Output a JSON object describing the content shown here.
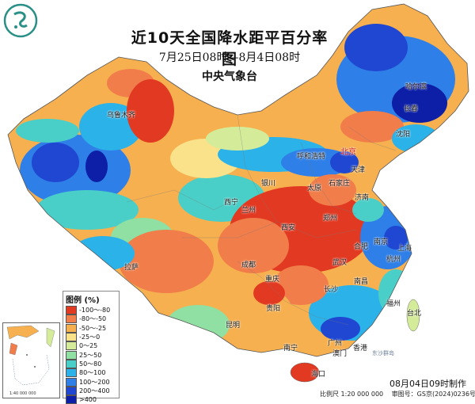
{
  "title": "近10天全国降水距平百分率图",
  "subtitle": "7月25日08时—8月4日08时",
  "agency": "中央气象台",
  "issue_time": "08月04日09时制作",
  "scale": "比例尺 1:20 000 000",
  "review_no": "审图号：GS京(2024)0236号",
  "legend": {
    "title": "图例 (%)",
    "items": [
      {
        "label": "-100～-80",
        "color": "#e23a22"
      },
      {
        "label": "-80～-50",
        "color": "#f07d4a"
      },
      {
        "label": "-50～-25",
        "color": "#f6b04f"
      },
      {
        "label": "-25～0",
        "color": "#f9e28a"
      },
      {
        "label": "0～25",
        "color": "#d4ec9a"
      },
      {
        "label": "25～50",
        "color": "#8fe0a2"
      },
      {
        "label": "50～80",
        "color": "#49cfc8"
      },
      {
        "label": "80～100",
        "color": "#2bb2e8"
      },
      {
        "label": "100～200",
        "color": "#2f7fe8"
      },
      {
        "label": "200～400",
        "color": "#1f47d1"
      },
      {
        "label": ">400",
        "color": "#0c1fa6"
      }
    ]
  },
  "cities": [
    {
      "name": "乌鲁木齐",
      "id": "urumqi"
    },
    {
      "name": "哈尔滨",
      "id": "harbin"
    },
    {
      "name": "长春",
      "id": "changchun"
    },
    {
      "name": "沈阳",
      "id": "shenyang"
    },
    {
      "name": "呼和浩特",
      "id": "hohhot"
    },
    {
      "name": "北京",
      "id": "beijing",
      "capital": true
    },
    {
      "name": "天津",
      "id": "tianjin"
    },
    {
      "name": "银川",
      "id": "yinchuan"
    },
    {
      "name": "太原",
      "id": "taiyuan"
    },
    {
      "name": "石家庄",
      "id": "shijiazhuang"
    },
    {
      "name": "西宁",
      "id": "xining"
    },
    {
      "name": "兰州",
      "id": "lanzhou"
    },
    {
      "name": "济南",
      "id": "jinan"
    },
    {
      "name": "郑州",
      "id": "zhengzhou"
    },
    {
      "name": "西安",
      "id": "xian"
    },
    {
      "name": "南京",
      "id": "nanjing"
    },
    {
      "name": "合肥",
      "id": "hefei"
    },
    {
      "name": "上海",
      "id": "shanghai"
    },
    {
      "name": "杭州",
      "id": "hangzhou"
    },
    {
      "name": "成都",
      "id": "chengdu"
    },
    {
      "name": "武汉",
      "id": "wuhan"
    },
    {
      "name": "拉萨",
      "id": "lhasa"
    },
    {
      "name": "重庆",
      "id": "chongqing"
    },
    {
      "name": "长沙",
      "id": "changsha"
    },
    {
      "name": "南昌",
      "id": "nanchang"
    },
    {
      "name": "贵阳",
      "id": "guiyang"
    },
    {
      "name": "福州",
      "id": "fuzhou"
    },
    {
      "name": "台北",
      "id": "taipei"
    },
    {
      "name": "昆明",
      "id": "kunming"
    },
    {
      "name": "南宁",
      "id": "nanning"
    },
    {
      "name": "广州",
      "id": "guangzhou"
    },
    {
      "name": "澳门",
      "id": "macau"
    },
    {
      "name": "香港",
      "id": "hongkong"
    },
    {
      "name": "海口",
      "id": "haikou"
    },
    {
      "name": "东沙群岛",
      "id": "dongsha"
    }
  ],
  "inset": {
    "scale_text": "1:40 000 000"
  }
}
